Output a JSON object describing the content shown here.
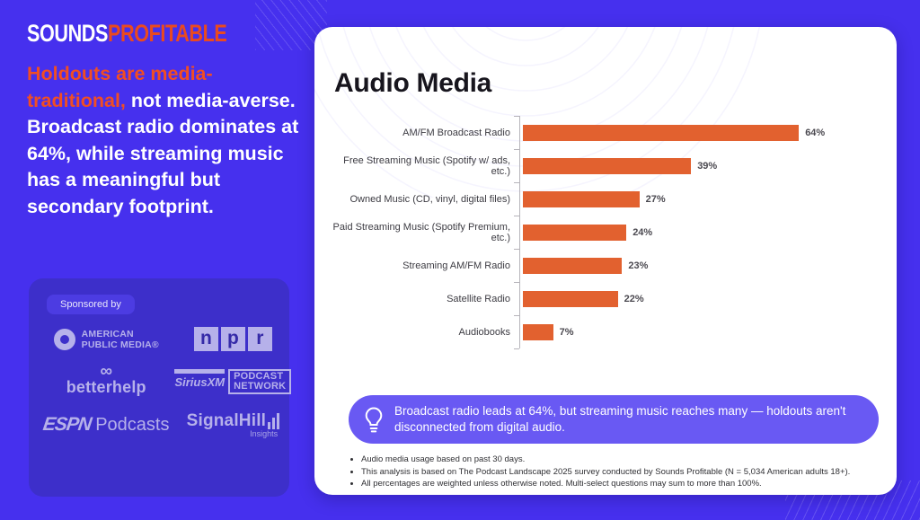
{
  "brand": {
    "name_white": "SOUNDS",
    "name_orange": "PROFITABLE"
  },
  "headline": {
    "highlight": "Holdouts are media-traditional,",
    "rest": " not media-averse. Broadcast radio dominates at 64%, while streaming music has a meaningful but secondary footprint."
  },
  "sponsors": {
    "label": "Sponsored by",
    "apm": {
      "line1": "AMERICAN",
      "line2": "PUBLIC MEDIA®"
    },
    "npr": {
      "letters": [
        "n",
        "p",
        "r"
      ]
    },
    "betterhelp": {
      "icon": "∞",
      "name": "betterhelp"
    },
    "siriusxm": {
      "name": "SiriusXM",
      "line1": "PODCAST",
      "line2": "NETWORK"
    },
    "espn": {
      "name": "ESPN",
      "sub": "Podcasts"
    },
    "signalhill": {
      "name": "SignalHill",
      "sub": "Insights"
    }
  },
  "card": {
    "title": "Audio Media",
    "callout": "Broadcast radio leads at 64%, but streaming music reaches many — holdouts aren't disconnected from digital audio.",
    "footnotes": [
      "Audio media usage based on past 30 days.",
      "This analysis is based on The Podcast Landscape 2025 survey conducted by Sounds Profitable (N = 5,034 American adults 18+).",
      "All percentages are weighted unless otherwise noted. Multi-select questions may sum to more than 100%."
    ]
  },
  "chart_data": {
    "type": "bar",
    "orientation": "horizontal",
    "title": "Audio Media",
    "categories": [
      "AM/FM Broadcast Radio",
      "Free Streaming Music (Spotify w/ ads, etc.)",
      "Owned Music (CD, vinyl, digital files)",
      "Paid Streaming Music (Spotify Premium, etc.)",
      "Streaming AM/FM Radio",
      "Satellite Radio",
      "Audiobooks"
    ],
    "values": [
      64,
      39,
      27,
      24,
      23,
      22,
      7
    ],
    "value_labels": [
      "64%",
      "39%",
      "27%",
      "24%",
      "23%",
      "22%",
      "7%"
    ],
    "xlim": [
      0,
      70
    ],
    "grid": false,
    "legend": false,
    "bar_color": "#e2612f"
  },
  "colors": {
    "background": "#4630ee",
    "sponsor_box": "#3d2fca",
    "lavender": "#b6b1ea",
    "accent_orange": "#f14e23",
    "bar_orange": "#e2612f",
    "callout_purple": "#6959f3"
  }
}
